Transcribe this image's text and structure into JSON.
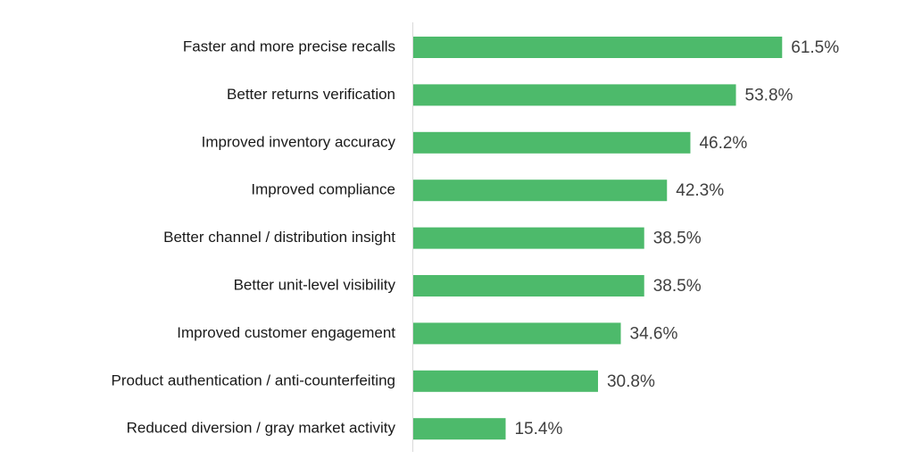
{
  "chart_data": {
    "type": "bar",
    "orientation": "horizontal",
    "categories": [
      "Faster and more precise recalls",
      "Better returns verification",
      "Improved inventory accuracy",
      "Improved compliance",
      "Better channel / distribution insight",
      "Better unit-level visibility",
      "Improved customer engagement",
      "Product authentication / anti-counterfeiting",
      "Reduced diversion / gray market activity"
    ],
    "values": [
      61.5,
      53.8,
      46.2,
      42.3,
      38.5,
      38.5,
      34.6,
      30.8,
      15.4
    ],
    "value_labels": [
      "61.5%",
      "53.8%",
      "46.2%",
      "42.3%",
      "38.5%",
      "38.5%",
      "34.6%",
      "30.8%",
      "15.4%"
    ],
    "color": "#4dba6b"
  }
}
